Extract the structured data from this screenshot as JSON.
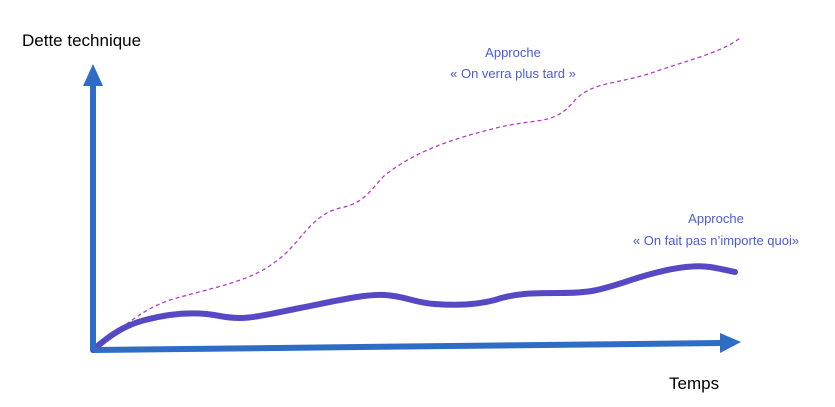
{
  "axes": {
    "y_label": "Dette technique",
    "x_label": "Temps"
  },
  "annotations": [
    {
      "lines": [
        "Approche",
        "« On verra plus tard »"
      ]
    },
    {
      "lines": [
        "Approche",
        "« On fait pas n’importe quoi»"
      ]
    }
  ]
}
